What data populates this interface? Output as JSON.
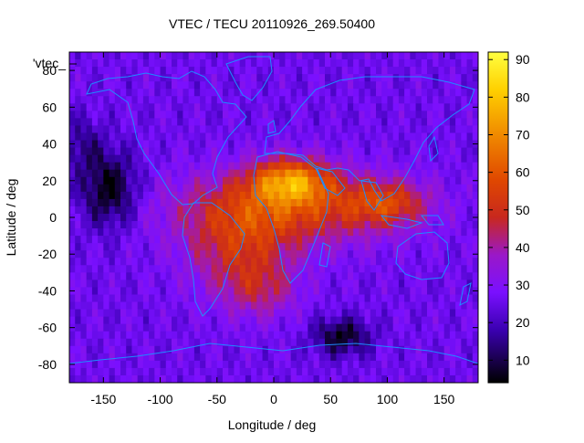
{
  "chart_data": {
    "type": "heatmap",
    "title": "VTEC / TECU 20110926_269.50400",
    "series_key": "'vtec_",
    "xlabel": "Longitude / deg",
    "ylabel": "Latitude / deg",
    "xlim": [
      -180,
      180
    ],
    "ylim": [
      -90,
      90
    ],
    "xticks": [
      -150,
      -100,
      -50,
      0,
      50,
      100,
      150
    ],
    "yticks": [
      -80,
      -60,
      -40,
      -20,
      0,
      20,
      40,
      60,
      80
    ],
    "colorbar": {
      "range": [
        4,
        92
      ],
      "ticks": [
        10,
        20,
        30,
        40,
        50,
        60,
        70,
        80,
        90
      ],
      "stops": [
        {
          "v": 4,
          "color": "#000000"
        },
        {
          "v": 18,
          "color": "#3a00b0"
        },
        {
          "v": 28,
          "color": "#7a10ff"
        },
        {
          "v": 38,
          "color": "#9a18c8"
        },
        {
          "v": 48,
          "color": "#c8281e"
        },
        {
          "v": 58,
          "color": "#e04800"
        },
        {
          "v": 70,
          "color": "#f08a00"
        },
        {
          "v": 82,
          "color": "#ffd000"
        },
        {
          "v": 92,
          "color": "#ffff40"
        }
      ]
    },
    "tec_features": [
      {
        "name": "background",
        "value": 26
      },
      {
        "name": "equatorial-anomaly-north-africa",
        "lon": 15,
        "lat": 20,
        "value": 90,
        "spread_lon": 35,
        "spread_lat": 12
      },
      {
        "name": "equatorial-band",
        "lon": 10,
        "lat": 5,
        "value": 28,
        "spread_lon": 95,
        "spread_lat": 20
      },
      {
        "name": "south-america-enhancement",
        "lon": -30,
        "lat": -20,
        "value": 20,
        "spread_lon": 45,
        "spread_lat": 25
      },
      {
        "name": "south-atlantic-tail",
        "lon": -10,
        "lat": -40,
        "value": 12,
        "spread_lon": 30,
        "spread_lat": 15
      },
      {
        "name": "indian-ocean-enhancement",
        "lon": 100,
        "lat": 8,
        "value": 22,
        "spread_lon": 35,
        "spread_lat": 12
      },
      {
        "name": "pacific-low",
        "lon": -145,
        "lat": 15,
        "value": -22,
        "spread_lon": 25,
        "spread_lat": 20
      },
      {
        "name": "southern-ocean-low",
        "lon": 60,
        "lat": -65,
        "value": -20,
        "spread_lon": 25,
        "spread_lat": 10
      },
      {
        "name": "north-pacific-low",
        "lon": -170,
        "lat": 40,
        "value": -10,
        "spread_lon": 20,
        "spread_lat": 15
      }
    ]
  }
}
